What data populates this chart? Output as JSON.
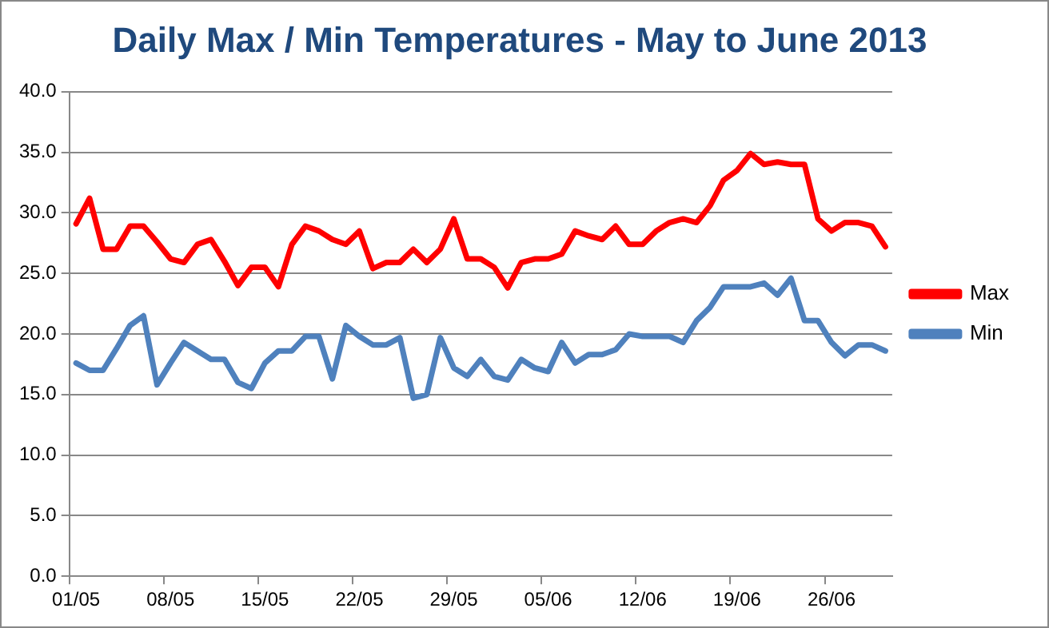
{
  "chart_data": {
    "type": "line",
    "title": "Daily Max / Min Temperatures - May to June 2013",
    "categories": [
      "01/05",
      null,
      null,
      null,
      null,
      null,
      null,
      "08/05",
      null,
      null,
      null,
      null,
      null,
      null,
      "15/05",
      null,
      null,
      null,
      null,
      null,
      null,
      "22/05",
      null,
      null,
      null,
      null,
      null,
      null,
      "29/05",
      null,
      null,
      null,
      null,
      null,
      null,
      "05/06",
      null,
      null,
      null,
      null,
      null,
      null,
      "12/06",
      null,
      null,
      null,
      null,
      null,
      null,
      "19/06",
      null,
      null,
      null,
      null,
      null,
      null,
      "26/06",
      null,
      null,
      null,
      null
    ],
    "series": [
      {
        "name": "Max",
        "color": "#ff0000",
        "values": [
          29.1,
          31.2,
          27.0,
          27.0,
          28.9,
          28.9,
          27.6,
          26.2,
          25.9,
          27.4,
          27.8,
          26.0,
          24.0,
          25.5,
          25.5,
          23.9,
          27.4,
          28.9,
          28.5,
          27.8,
          27.4,
          28.5,
          25.4,
          25.9,
          25.9,
          27.0,
          25.9,
          27.0,
          29.5,
          26.2,
          26.2,
          25.5,
          23.8,
          25.9,
          26.2,
          26.2,
          26.6,
          28.5,
          28.1,
          27.8,
          28.9,
          27.4,
          27.4,
          28.5,
          29.2,
          29.5,
          29.2,
          30.6,
          32.7,
          33.5,
          34.9,
          34.0,
          34.2,
          34.0,
          34.0,
          29.5,
          28.5,
          29.2,
          29.2,
          28.9,
          27.2
        ]
      },
      {
        "name": "Min",
        "color": "#4f81bd",
        "values": [
          17.6,
          17.0,
          17.0,
          18.8,
          20.7,
          21.5,
          15.8,
          17.6,
          19.3,
          18.6,
          17.9,
          17.9,
          16.0,
          15.5,
          17.6,
          18.6,
          18.6,
          19.8,
          19.8,
          16.3,
          20.7,
          19.8,
          19.1,
          19.1,
          19.7,
          14.7,
          15.0,
          19.7,
          17.2,
          16.5,
          17.9,
          16.5,
          16.2,
          17.9,
          17.2,
          16.9,
          19.3,
          17.6,
          18.3,
          18.3,
          18.7,
          20.0,
          19.8,
          19.8,
          19.8,
          19.3,
          21.1,
          22.2,
          23.9,
          23.9,
          23.9,
          24.2,
          23.2,
          24.6,
          21.1,
          21.1,
          19.3,
          18.2,
          19.1,
          19.1,
          18.6
        ]
      }
    ],
    "ylim": [
      0,
      40
    ],
    "yticks": [
      {
        "value": 0,
        "label": "0.0"
      },
      {
        "value": 5,
        "label": "5.0"
      },
      {
        "value": 10,
        "label": "10.0"
      },
      {
        "value": 15,
        "label": "15.0"
      },
      {
        "value": 20,
        "label": "20.0"
      },
      {
        "value": 25,
        "label": "25.0"
      },
      {
        "value": 30,
        "label": "30.0"
      },
      {
        "value": 35,
        "label": "35.0"
      },
      {
        "value": 40,
        "label": "40.0"
      }
    ],
    "grid": "y",
    "legend": "right",
    "marker": "none",
    "line_style": "solid"
  }
}
